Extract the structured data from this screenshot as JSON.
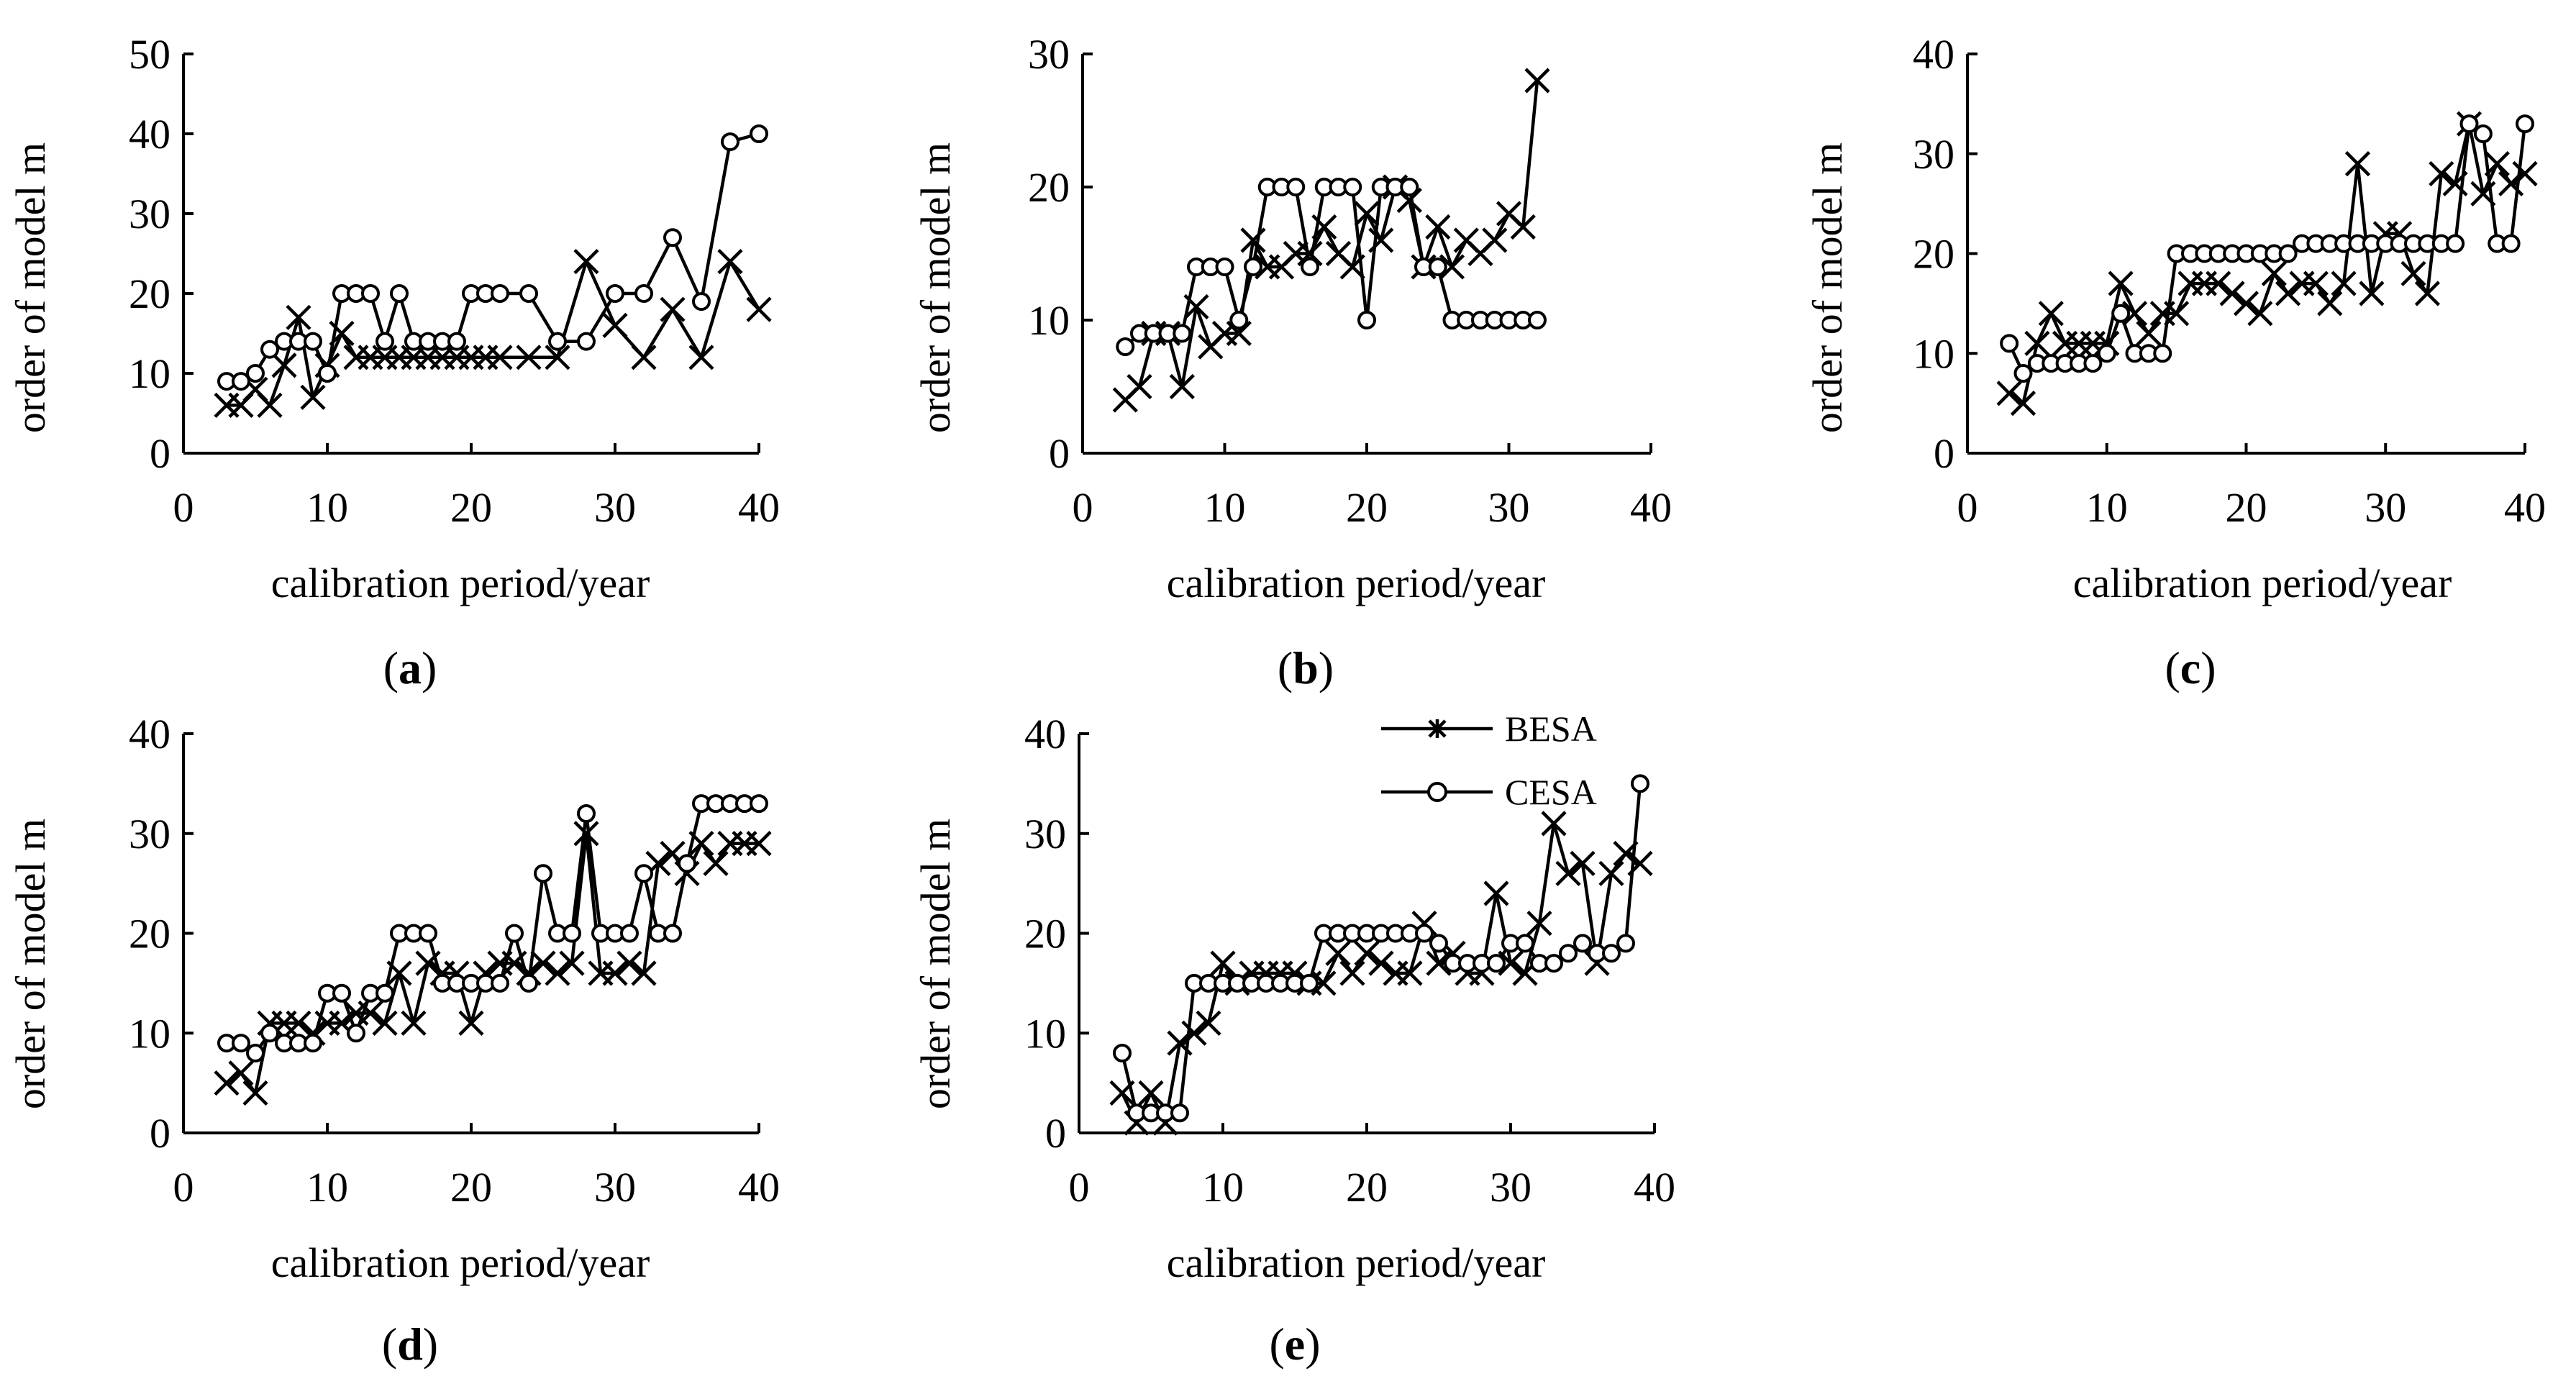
{
  "figure_labels": [
    "a",
    "b",
    "c",
    "d",
    "e"
  ],
  "legend": {
    "series": [
      "BESA",
      "CESA"
    ]
  },
  "chart_data": [
    {
      "type": "line",
      "label": "a",
      "xlabel": "calibration period/year",
      "ylabel": "order of model m",
      "xlim": [
        0,
        40
      ],
      "ylim": [
        0,
        50
      ],
      "xticks": [
        "0",
        "10",
        "20",
        "30",
        "40"
      ],
      "yticks": [
        "0",
        "10",
        "20",
        "30",
        "40",
        "50"
      ],
      "series": [
        {
          "name": "BESA",
          "marker": "x",
          "x": [
            3,
            4,
            5,
            6,
            7,
            8,
            9,
            10,
            11,
            12,
            13,
            14,
            15,
            16,
            17,
            18,
            19,
            20,
            21,
            22,
            24,
            26,
            28,
            30,
            32,
            34,
            36,
            38,
            40
          ],
          "y": [
            6,
            6,
            8,
            6,
            11,
            17,
            7,
            11,
            15,
            12,
            12,
            12,
            12,
            12,
            12,
            12,
            12,
            12,
            12,
            12,
            12,
            12,
            24,
            16,
            12,
            18,
            12,
            24,
            18
          ]
        },
        {
          "name": "CESA",
          "marker": "circle",
          "x": [
            3,
            4,
            5,
            6,
            7,
            8,
            9,
            10,
            11,
            12,
            13,
            14,
            15,
            16,
            17,
            18,
            19,
            20,
            21,
            22,
            24,
            26,
            28,
            30,
            32,
            34,
            36,
            38,
            40
          ],
          "y": [
            9,
            9,
            10,
            13,
            14,
            14,
            14,
            10,
            20,
            20,
            20,
            14,
            20,
            14,
            14,
            14,
            14,
            20,
            20,
            20,
            20,
            14,
            14,
            20,
            20,
            27,
            19,
            39,
            40
          ]
        }
      ]
    },
    {
      "type": "line",
      "label": "b",
      "xlabel": "calibration period/year",
      "ylabel": "order of model m",
      "xlim": [
        0,
        40
      ],
      "ylim": [
        0,
        30
      ],
      "xticks": [
        "0",
        "10",
        "20",
        "30",
        "40"
      ],
      "yticks": [
        "0",
        "10",
        "20",
        "30"
      ],
      "series": [
        {
          "name": "BESA",
          "marker": "x",
          "x": [
            3,
            4,
            5,
            6,
            7,
            8,
            9,
            10,
            11,
            12,
            13,
            14,
            15,
            16,
            17,
            18,
            19,
            20,
            21,
            22,
            23,
            24,
            25,
            26,
            27,
            28,
            29,
            30,
            31,
            32
          ],
          "y": [
            4,
            5,
            9,
            9,
            5,
            11,
            8,
            9,
            9,
            16,
            14,
            14,
            15,
            15,
            17,
            15,
            14,
            18,
            16,
            20,
            19,
            14,
            17,
            14,
            16,
            15,
            16,
            18,
            17,
            28
          ]
        },
        {
          "name": "CESA",
          "marker": "circle",
          "x": [
            3,
            4,
            5,
            6,
            7,
            8,
            9,
            10,
            11,
            12,
            13,
            14,
            15,
            16,
            17,
            18,
            19,
            20,
            21,
            22,
            23,
            24,
            25,
            26,
            27,
            28,
            29,
            30,
            31,
            32
          ],
          "y": [
            8,
            9,
            9,
            9,
            9,
            14,
            14,
            14,
            10,
            14,
            20,
            20,
            20,
            14,
            20,
            20,
            20,
            10,
            20,
            20,
            20,
            14,
            14,
            10,
            10,
            10,
            10,
            10,
            10,
            10
          ]
        }
      ]
    },
    {
      "type": "line",
      "label": "c",
      "xlabel": "calibration period/year",
      "ylabel": "order of model m",
      "xlim": [
        0,
        40
      ],
      "ylim": [
        0,
        40
      ],
      "xticks": [
        "0",
        "10",
        "20",
        "30",
        "40"
      ],
      "yticks": [
        "0",
        "10",
        "20",
        "30",
        "40"
      ],
      "series": [
        {
          "name": "BESA",
          "marker": "x",
          "x": [
            3,
            4,
            5,
            6,
            7,
            8,
            9,
            10,
            11,
            12,
            13,
            14,
            15,
            16,
            17,
            18,
            19,
            20,
            21,
            22,
            23,
            24,
            25,
            26,
            27,
            28,
            29,
            30,
            31,
            32,
            33,
            34,
            35,
            36,
            37,
            38,
            39,
            40
          ],
          "y": [
            6,
            5,
            11,
            14,
            11,
            11,
            11,
            11,
            17,
            14,
            12,
            14,
            14,
            17,
            17,
            17,
            16,
            15,
            14,
            18,
            16,
            17,
            17,
            15,
            17,
            29,
            16,
            22,
            22,
            18,
            16,
            28,
            27,
            33,
            26,
            29,
            27,
            28
          ]
        },
        {
          "name": "CESA",
          "marker": "circle",
          "x": [
            3,
            4,
            5,
            6,
            7,
            8,
            9,
            10,
            11,
            12,
            13,
            14,
            15,
            16,
            17,
            18,
            19,
            20,
            21,
            22,
            23,
            24,
            25,
            26,
            27,
            28,
            29,
            30,
            31,
            32,
            33,
            34,
            35,
            36,
            37,
            38,
            39,
            40
          ],
          "y": [
            11,
            8,
            9,
            9,
            9,
            9,
            9,
            10,
            14,
            10,
            10,
            10,
            20,
            20,
            20,
            20,
            20,
            20,
            20,
            20,
            20,
            21,
            21,
            21,
            21,
            21,
            21,
            21,
            21,
            21,
            21,
            21,
            21,
            33,
            32,
            21,
            21,
            33
          ]
        }
      ]
    },
    {
      "type": "line",
      "label": "d",
      "xlabel": "calibration period/year",
      "ylabel": "order of model m",
      "xlim": [
        0,
        40
      ],
      "ylim": [
        0,
        40
      ],
      "xticks": [
        "0",
        "10",
        "20",
        "30",
        "40"
      ],
      "yticks": [
        "0",
        "10",
        "20",
        "30",
        "40"
      ],
      "series": [
        {
          "name": "BESA",
          "marker": "x",
          "x": [
            3,
            4,
            5,
            6,
            7,
            8,
            9,
            10,
            11,
            12,
            13,
            14,
            15,
            16,
            17,
            18,
            19,
            20,
            21,
            22,
            23,
            24,
            25,
            26,
            27,
            28,
            29,
            30,
            31,
            32,
            33,
            34,
            35,
            36,
            37,
            38,
            39,
            40
          ],
          "y": [
            5,
            6,
            4,
            11,
            11,
            11,
            10,
            11,
            11,
            12,
            12,
            11,
            16,
            11,
            17,
            16,
            16,
            11,
            16,
            17,
            17,
            16,
            17,
            16,
            17,
            30,
            16,
            16,
            17,
            16,
            27,
            28,
            26,
            29,
            27,
            29,
            29,
            29
          ]
        },
        {
          "name": "CESA",
          "marker": "circle",
          "x": [
            3,
            4,
            5,
            6,
            7,
            8,
            9,
            10,
            11,
            12,
            13,
            14,
            15,
            16,
            17,
            18,
            19,
            20,
            21,
            22,
            23,
            24,
            25,
            26,
            27,
            28,
            29,
            30,
            31,
            32,
            33,
            34,
            35,
            36,
            37,
            38,
            39,
            40
          ],
          "y": [
            9,
            9,
            8,
            10,
            9,
            9,
            9,
            14,
            14,
            10,
            14,
            14,
            20,
            20,
            20,
            15,
            15,
            15,
            15,
            15,
            20,
            15,
            26,
            20,
            20,
            32,
            20,
            20,
            20,
            26,
            20,
            20,
            27,
            33,
            33,
            33,
            33,
            33
          ]
        }
      ]
    },
    {
      "type": "line",
      "label": "e",
      "xlabel": "calibration period/year",
      "ylabel": "order of model m",
      "xlim": [
        0,
        40
      ],
      "ylim": [
        0,
        40
      ],
      "xticks": [
        "0",
        "10",
        "20",
        "30",
        "40"
      ],
      "yticks": [
        "0",
        "10",
        "20",
        "30",
        "40"
      ],
      "legend_position": "top-right",
      "series": [
        {
          "name": "BESA",
          "marker": "x",
          "x": [
            3,
            4,
            5,
            6,
            7,
            8,
            9,
            10,
            11,
            12,
            13,
            14,
            15,
            16,
            17,
            18,
            19,
            20,
            21,
            22,
            23,
            24,
            25,
            26,
            27,
            28,
            29,
            30,
            31,
            32,
            33,
            34,
            35,
            36,
            37,
            38,
            39
          ],
          "y": [
            4,
            1,
            4,
            1,
            9,
            10,
            11,
            17,
            15,
            16,
            16,
            16,
            16,
            15,
            15,
            18,
            16,
            18,
            17,
            16,
            16,
            21,
            17,
            18,
            16,
            16,
            24,
            17,
            16,
            21,
            31,
            26,
            27,
            17,
            26,
            28,
            27
          ]
        },
        {
          "name": "CESA",
          "marker": "circle",
          "x": [
            3,
            4,
            5,
            6,
            7,
            8,
            9,
            10,
            11,
            12,
            13,
            14,
            15,
            16,
            17,
            18,
            19,
            20,
            21,
            22,
            23,
            24,
            25,
            26,
            27,
            28,
            29,
            30,
            31,
            32,
            33,
            34,
            35,
            36,
            37,
            38,
            39
          ],
          "y": [
            8,
            2,
            2,
            2,
            2,
            15,
            15,
            15,
            15,
            15,
            15,
            15,
            15,
            15,
            20,
            20,
            20,
            20,
            20,
            20,
            20,
            20,
            19,
            17,
            17,
            17,
            17,
            19,
            19,
            17,
            17,
            18,
            19,
            18,
            18,
            19,
            35
          ]
        }
      ]
    }
  ]
}
